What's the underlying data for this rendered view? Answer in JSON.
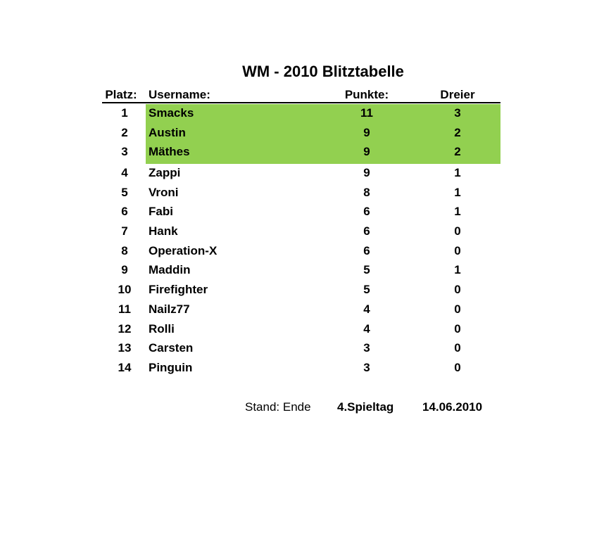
{
  "title": "WM - 2010 Blitztabelle",
  "highlight_color": "#92d050",
  "headers": {
    "platz": "Platz:",
    "username": "Username:",
    "punkte": "Punkte:",
    "dreier": "Dreier"
  },
  "rows": [
    {
      "platz": "1",
      "username": "Smacks",
      "punkte": "11",
      "dreier": "3",
      "highlighted": true
    },
    {
      "platz": "2",
      "username": "Austin",
      "punkte": "9",
      "dreier": "2",
      "highlighted": true
    },
    {
      "platz": "3",
      "username": "Mäthes",
      "punkte": "9",
      "dreier": "2",
      "highlighted": true
    },
    {
      "platz": "4",
      "username": "Zappi",
      "punkte": "9",
      "dreier": "1"
    },
    {
      "platz": "5",
      "username": "Vroni",
      "punkte": "8",
      "dreier": "1"
    },
    {
      "platz": "6",
      "username": "Fabi",
      "punkte": "6",
      "dreier": "1"
    },
    {
      "platz": "7",
      "username": "Hank",
      "punkte": "6",
      "dreier": "0"
    },
    {
      "platz": "8",
      "username": "Operation-X",
      "punkte": "6",
      "dreier": "0"
    },
    {
      "platz": "9",
      "username": "Maddin",
      "punkte": "5",
      "dreier": "1"
    },
    {
      "platz": "10",
      "username": "Firefighter",
      "punkte": "5",
      "dreier": "0"
    },
    {
      "platz": "11",
      "username": "Nailz77",
      "punkte": "4",
      "dreier": "0"
    },
    {
      "platz": "12",
      "username": "Rolli",
      "punkte": "4",
      "dreier": "0"
    },
    {
      "platz": "13",
      "username": "Carsten",
      "punkte": "3",
      "dreier": "0"
    },
    {
      "platz": "14",
      "username": "Pinguin",
      "punkte": "3",
      "dreier": "0"
    }
  ],
  "footer": {
    "stand": "Stand: Ende",
    "spieltag": "4.Spieltag",
    "datum": "14.06.2010"
  }
}
